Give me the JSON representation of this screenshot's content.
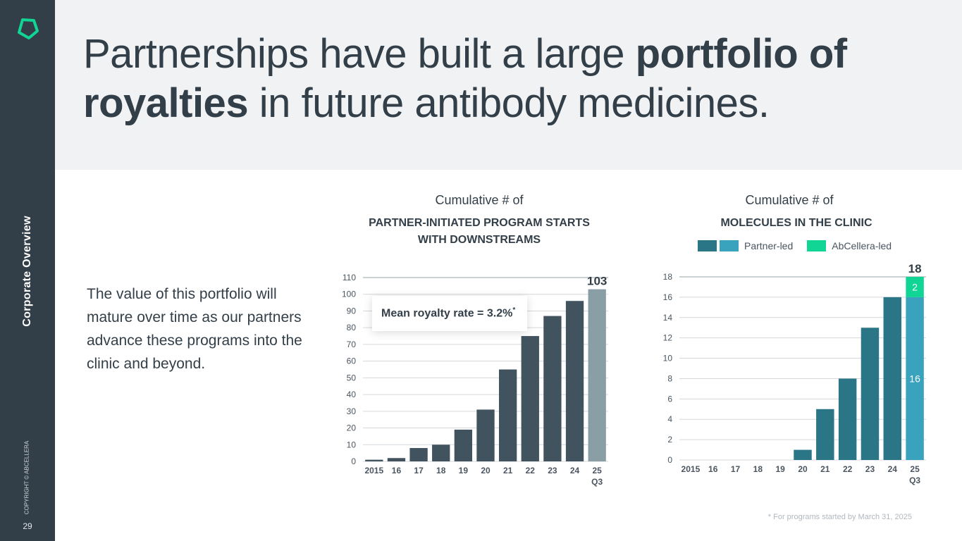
{
  "sidebar": {
    "section": "Corporate Overview",
    "copyright": "COPYRIGHT © ABCELLERA",
    "page": "29"
  },
  "header": {
    "title_pre": "Partnerships have built a large ",
    "title_bold1": "portfolio of",
    "title_bold2": "royalties",
    "title_post": " in future antibody medicines."
  },
  "body_text": "The value of this portfolio will mature over time as our partners advance these programs into the clinic and beyond.",
  "footnote": "* For programs started by March 31, 2025",
  "colors": {
    "bar_dark": "#41535f",
    "bar_last": "#8a9ea6",
    "partner_dark": "#2a7686",
    "partner_light": "#39a2bd",
    "abcellera": "#10d595",
    "accent": "#10d595"
  },
  "chart_data": [
    {
      "type": "bar",
      "title": "Cumulative # of",
      "subtitle_line1": "PARTNER-INITIATED PROGRAM STARTS",
      "subtitle_line2": "WITH DOWNSTREAMS",
      "categories": [
        "2015",
        "16",
        "17",
        "18",
        "19",
        "20",
        "21",
        "22",
        "23",
        "24",
        "25"
      ],
      "category_sub": {
        "10": "Q3"
      },
      "values": [
        1,
        2,
        8,
        10,
        19,
        31,
        55,
        75,
        87,
        96,
        103
      ],
      "ylim": [
        0,
        110
      ],
      "yticks": [
        0,
        10,
        20,
        30,
        40,
        50,
        60,
        70,
        80,
        90,
        100,
        110
      ],
      "total_label": "103",
      "annotation": "Mean royalty rate = 3.2%",
      "annotation_mark": "*",
      "grid": true
    },
    {
      "type": "bar",
      "stacked": true,
      "title": "Cumulative # of",
      "subtitle_line1": "MOLECULES IN THE CLINIC",
      "categories": [
        "2015",
        "16",
        "17",
        "18",
        "19",
        "20",
        "21",
        "22",
        "23",
        "24",
        "25"
      ],
      "category_sub": {
        "10": "Q3"
      },
      "series": [
        {
          "name": "Partner-led",
          "values": [
            0,
            0,
            0,
            0,
            0,
            1,
            5,
            8,
            13,
            16,
            16
          ]
        },
        {
          "name": "AbCellera-led",
          "values": [
            0,
            0,
            0,
            0,
            0,
            0,
            0,
            0,
            0,
            0,
            2
          ]
        }
      ],
      "segment_labels": {
        "partner_last": "16",
        "abcellera_last": "2"
      },
      "ylim": [
        0,
        18
      ],
      "yticks": [
        0,
        2,
        4,
        6,
        8,
        10,
        12,
        14,
        16,
        18
      ],
      "total_label": "18",
      "legend_position": "top",
      "grid": true
    }
  ]
}
